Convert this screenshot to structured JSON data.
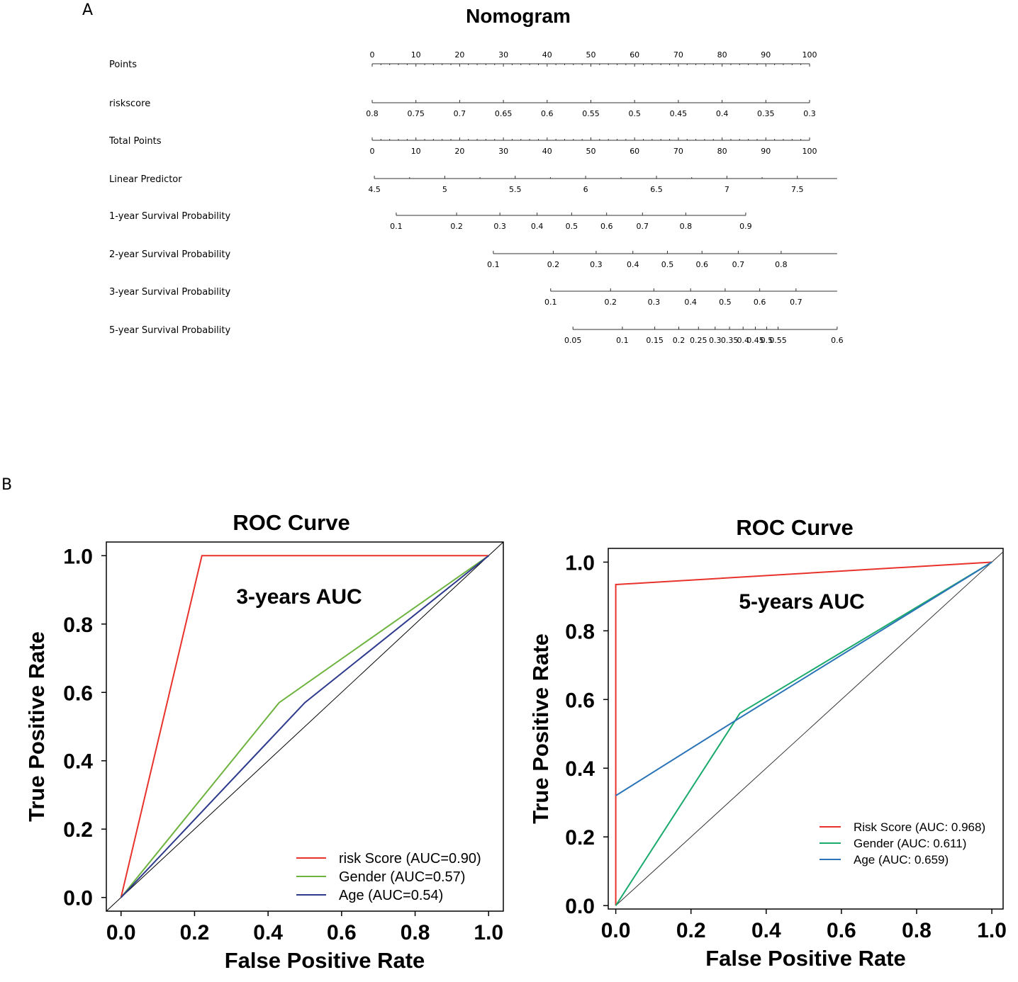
{
  "panels": {
    "a": "A",
    "b": "B"
  },
  "chart_data": [
    {
      "type": "nomogram",
      "title": "Nomogram",
      "scales": [
        {
          "label": "Points",
          "ticks": [
            "0",
            "10",
            "20",
            "30",
            "40",
            "50",
            "60",
            "70",
            "80",
            "90",
            "100"
          ],
          "positions": [
            0,
            10,
            20,
            30,
            40,
            50,
            60,
            70,
            80,
            90,
            100
          ],
          "minor_count": 4,
          "labels_above": true
        },
        {
          "label": "riskscore",
          "ticks": [
            "0.8",
            "0.75",
            "0.7",
            "0.65",
            "0.6",
            "0.55",
            "0.5",
            "0.45",
            "0.4",
            "0.35",
            "0.3"
          ],
          "positions": [
            0,
            10,
            20,
            30,
            40,
            50,
            60,
            70,
            80,
            90,
            100
          ],
          "minor_count": 0,
          "labels_above": false
        },
        {
          "label": "Total Points",
          "ticks": [
            "0",
            "10",
            "20",
            "30",
            "40",
            "50",
            "60",
            "70",
            "80",
            "90",
            "100"
          ],
          "positions": [
            0,
            10,
            20,
            30,
            40,
            50,
            60,
            70,
            80,
            90,
            100
          ],
          "minor_count": 4,
          "labels_above": false
        },
        {
          "label": "Linear Predictor",
          "ticks": [
            "4.5",
            "5",
            "5.5",
            "6",
            "6.5",
            "7",
            "7.5"
          ],
          "positions": [
            0.5,
            16.6,
            32.7,
            48.8,
            65,
            81.1,
            97.2
          ],
          "line_range": [
            0.5,
            106.3
          ],
          "minor_count": 1,
          "labels_above": false
        },
        {
          "label": "1-year Survival Probability",
          "ticks": [
            "0.1",
            "0.2",
            "0.3",
            "0.4",
            "0.5",
            "0.6",
            "0.7",
            "0.8",
            "0.9"
          ],
          "positions": [
            5.5,
            19.3,
            29.2,
            37.7,
            45.6,
            53.6,
            61.8,
            71.7,
            85.4
          ],
          "minor_count": 0,
          "labels_above": false
        },
        {
          "label": "2-year Survival Probability",
          "ticks": [
            "0.1",
            "0.2",
            "0.3",
            "0.4",
            "0.5",
            "0.6",
            "0.7",
            "0.8"
          ],
          "positions": [
            27.7,
            41.4,
            51.2,
            59.6,
            67.5,
            75.4,
            83.7,
            93.5
          ],
          "line_range": [
            27.7,
            106.3
          ],
          "minor_count": 0,
          "labels_above": false
        },
        {
          "label": "3-year Survival Probability",
          "ticks": [
            "0.1",
            "0.2",
            "0.3",
            "0.4",
            "0.5",
            "0.6",
            "0.7"
          ],
          "positions": [
            40.8,
            54.5,
            64.4,
            72.8,
            80.7,
            88.6,
            96.9
          ],
          "line_range": [
            40.8,
            106.3
          ],
          "minor_count": 0,
          "labels_above": false
        },
        {
          "label": "5-year Survival Probability",
          "ticks": [
            "0.05",
            "0.1",
            "0.15",
            "0.2",
            "0.25",
            "0.3",
            "0.35",
            "0.4",
            "0.45",
            "0.5",
            "0.55",
            "0.6"
          ],
          "positions": [
            45.9,
            57.2,
            64.6,
            70.1,
            74.6,
            78.4,
            81.7,
            84.8,
            87.6,
            90.2,
            92.8,
            106.3
          ],
          "minor_count": 0,
          "labels_above": false
        }
      ]
    },
    {
      "type": "line",
      "title": "ROC Curve",
      "annotation": "3-years AUC",
      "xlabel": "False Positive Rate",
      "ylabel": "True Positive Rate",
      "xlim": [
        -0.04,
        1.04
      ],
      "ylim": [
        -0.04,
        1.04
      ],
      "xticks": [
        "0.0",
        "0.2",
        "0.4",
        "0.6",
        "0.8",
        "1.0"
      ],
      "yticks": [
        "0.0",
        "0.2",
        "0.4",
        "0.6",
        "0.8",
        "1.0"
      ],
      "diagonal_color": "#000000",
      "legend_position": "bottom-right",
      "series": [
        {
          "name": "risk Score (AUC=0.90)",
          "color": "#e8322b",
          "x": [
            0,
            0.22,
            1
          ],
          "y": [
            0,
            1,
            1
          ]
        },
        {
          "name": "Gender (AUC=0.57)",
          "color": "#6db33f",
          "x": [
            0,
            0.43,
            1
          ],
          "y": [
            0,
            0.57,
            1
          ]
        },
        {
          "name": "Age (AUC=0.54)",
          "color": "#2d3a8c",
          "x": [
            0,
            0.5,
            1
          ],
          "y": [
            0,
            0.57,
            1
          ]
        }
      ]
    },
    {
      "type": "line",
      "title": "ROC Curve",
      "annotation": "5-years AUC",
      "xlabel": "False Positive Rate",
      "ylabel": "True Positive Rate",
      "xlim": [
        -0.02,
        1.03
      ],
      "ylim": [
        -0.01,
        1.04
      ],
      "xticks": [
        "0.0",
        "0.2",
        "0.4",
        "0.6",
        "0.8",
        "1.0"
      ],
      "yticks": [
        "0.0",
        "0.2",
        "0.4",
        "0.6",
        "0.8",
        "1.0"
      ],
      "diagonal_color": "#333333",
      "legend_position": "bottom-right",
      "series": [
        {
          "name": "Risk Score (AUC: 0.968)",
          "color": "#e8322b",
          "x": [
            0,
            0,
            0.005,
            1
          ],
          "y": [
            0,
            0.935,
            0.935,
            1
          ]
        },
        {
          "name": "Gender (AUC: 0.611)",
          "color": "#1aaa6b",
          "x": [
            0,
            0.33,
            1
          ],
          "y": [
            0,
            0.56,
            1
          ]
        },
        {
          "name": "Age (AUC: 0.659)",
          "color": "#2b74b8",
          "x": [
            0,
            0.32,
            1
          ],
          "y": [
            0.32,
            0.54,
            1
          ]
        }
      ]
    }
  ]
}
